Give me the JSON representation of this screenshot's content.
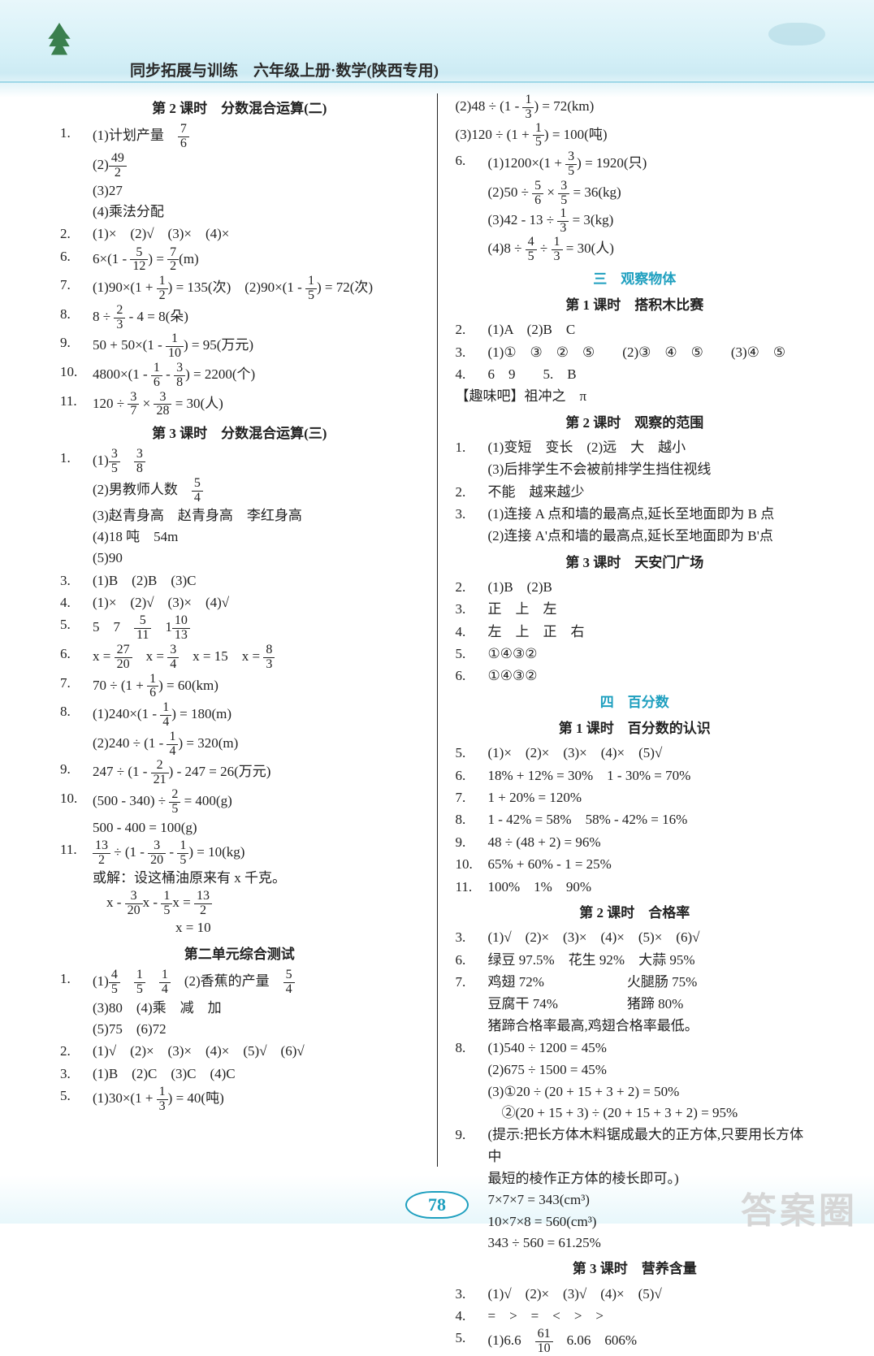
{
  "header": {
    "title": "同步拓展与训练　六年级上册·数学(陕西专用)"
  },
  "pageNumber": "78",
  "watermark": "答案圈",
  "colors": {
    "accent": "#1e9fbf",
    "header_bg_top": "#e8f7fb",
    "header_bg_bottom": "#cdebf4",
    "text": "#222222"
  },
  "left": {
    "sections": [
      {
        "title": "第 2 课时　分数混合运算(二)",
        "items": [
          {
            "n": "1.",
            "lines": [
              "(1)计划产量　<f>7|6</f>",
              "(2)<f>49|2</f>",
              "(3)27",
              "(4)乘法分配"
            ]
          },
          {
            "n": "2.",
            "lines": [
              "(1)×　(2)√　(3)×　(4)×"
            ]
          },
          {
            "n": "6.",
            "lines": [
              "6×(1 - <f>5|12</f>) = <f>7|2</f>(m)"
            ]
          },
          {
            "n": "7.",
            "lines": [
              "(1)90×(1 + <f>1|2</f>) = 135(次)　(2)90×(1 - <f>1|5</f>) = 72(次)"
            ]
          },
          {
            "n": "8.",
            "lines": [
              "8 ÷ <f>2|3</f> - 4 = 8(朵)"
            ]
          },
          {
            "n": "9.",
            "lines": [
              "50 + 50×(1 - <f>1|10</f>) = 95(万元)"
            ]
          },
          {
            "n": "10.",
            "lines": [
              "4800×(1 - <f>1|6</f> - <f>3|8</f>) = 2200(个)"
            ]
          },
          {
            "n": "11.",
            "lines": [
              "120 ÷ <f>3|7</f> × <f>3|28</f> = 30(人)"
            ]
          }
        ]
      },
      {
        "title": "第 3 课时　分数混合运算(三)",
        "items": [
          {
            "n": "1.",
            "lines": [
              "(1)<f>3|5</f>　<f>3|8</f>",
              "(2)男教师人数　<f>5|4</f>",
              "(3)赵青身高　赵青身高　李红身高",
              "(4)18 吨　54m",
              "(5)90"
            ]
          },
          {
            "n": "3.",
            "lines": [
              "(1)B　(2)B　(3)C"
            ]
          },
          {
            "n": "4.",
            "lines": [
              "(1)×　(2)√　(3)×　(4)√"
            ]
          },
          {
            "n": "5.",
            "lines": [
              "5　7　<f>5|11</f>　1<f>10|13</f>"
            ]
          },
          {
            "n": "6.",
            "lines": [
              "x = <f>27|20</f>　x = <f>3|4</f>　x = 15　x = <f>8|3</f>"
            ]
          },
          {
            "n": "7.",
            "lines": [
              "70 ÷ (1 + <f>1|6</f>) = 60(km)"
            ]
          },
          {
            "n": "8.",
            "lines": [
              "(1)240×(1 - <f>1|4</f>) = 180(m)",
              "(2)240 ÷ (1 - <f>1|4</f>) = 320(m)"
            ]
          },
          {
            "n": "9.",
            "lines": [
              "247 ÷ (1 - <f>2|21</f>) - 247 = 26(万元)"
            ]
          },
          {
            "n": "10.",
            "lines": [
              "(500 - 340) ÷ <f>2|5</f> = 400(g)",
              "500 - 400 = 100(g)"
            ]
          },
          {
            "n": "11.",
            "lines": [
              "<f>13|2</f> ÷ (1 - <f>3|20</f> - <f>1|5</f>) = 10(kg)",
              "或解：设这桶油原来有 x 千克。",
              "　x - <f>3|20</f>x - <f>1|5</f>x = <f>13|2</f>",
              "　　　　　　x = 10"
            ]
          }
        ]
      },
      {
        "title": "第二单元综合测试",
        "items": [
          {
            "n": "1.",
            "lines": [
              "(1)<f>4|5</f>　<f>1|5</f>　<f>1|4</f>　(2)香蕉的产量　<f>5|4</f>",
              "(3)80　(4)乘　减　加",
              "(5)75　(6)72"
            ]
          },
          {
            "n": "2.",
            "lines": [
              "(1)√　(2)×　(3)×　(4)×　(5)√　(6)√"
            ]
          },
          {
            "n": "3.",
            "lines": [
              "(1)B　(2)C　(3)C　(4)C"
            ]
          },
          {
            "n": "5.",
            "lines": [
              "(1)30×(1 + <f>1|3</f>) = 40(吨)"
            ]
          }
        ]
      }
    ]
  },
  "right": {
    "preItems": [
      {
        "n": "",
        "lines": [
          "(2)48 ÷ (1 - <f>1|3</f>) = 72(km)",
          "(3)120 ÷ (1 + <f>1|5</f>) = 100(吨)"
        ]
      },
      {
        "n": "6.",
        "lines": [
          "(1)1200×(1 + <f>3|5</f>) = 1920(只)",
          "(2)50 ÷ <f>5|6</f> × <f>3|5</f> = 36(kg)",
          "(3)42 - 13 ÷ <f>1|3</f> = 3(kg)",
          "(4)8 ÷ <f>4|5</f> ÷ <f>1|3</f> = 30(人)"
        ]
      }
    ],
    "units": [
      {
        "unit": "三　观察物体",
        "sections": [
          {
            "title": "第 1 课时　搭积木比赛",
            "items": [
              {
                "n": "2.",
                "lines": [
                  "(1)A　(2)B　C"
                ]
              },
              {
                "n": "3.",
                "lines": [
                  "(1)①　③　②　⑤　　(2)③　④　⑤　　(3)④　⑤"
                ]
              },
              {
                "n": "4.",
                "lines": [
                  "6　9　　5.　B"
                ]
              },
              {
                "n": "",
                "lines": [
                  "【趣味吧】祖冲之　π"
                ]
              }
            ]
          },
          {
            "title": "第 2 课时　观察的范围",
            "items": [
              {
                "n": "1.",
                "lines": [
                  "(1)变短　变长　(2)远　大　越小",
                  "(3)后排学生不会被前排学生挡住视线"
                ]
              },
              {
                "n": "2.",
                "lines": [
                  "不能　越来越少"
                ]
              },
              {
                "n": "3.",
                "lines": [
                  "(1)连接 A 点和墙的最高点,延长至地面即为 B 点",
                  "(2)连接 A'点和墙的最高点,延长至地面即为 B'点"
                ]
              }
            ]
          },
          {
            "title": "第 3 课时　天安门广场",
            "items": [
              {
                "n": "2.",
                "lines": [
                  "(1)B　(2)B"
                ]
              },
              {
                "n": "3.",
                "lines": [
                  "正　上　左"
                ]
              },
              {
                "n": "4.",
                "lines": [
                  "左　上　正　右"
                ]
              },
              {
                "n": "5.",
                "lines": [
                  "①④③②"
                ]
              },
              {
                "n": "6.",
                "lines": [
                  "①④③②"
                ]
              }
            ]
          }
        ]
      },
      {
        "unit": "四　百分数",
        "sections": [
          {
            "title": "第 1 课时　百分数的认识",
            "items": [
              {
                "n": "5.",
                "lines": [
                  "(1)×　(2)×　(3)×　(4)×　(5)√"
                ]
              },
              {
                "n": "6.",
                "lines": [
                  "18% + 12% = 30%　1 - 30% = 70%"
                ]
              },
              {
                "n": "7.",
                "lines": [
                  "1 + 20% = 120%"
                ]
              },
              {
                "n": "8.",
                "lines": [
                  "1 - 42% = 58%　58% - 42% = 16%"
                ]
              },
              {
                "n": "9.",
                "lines": [
                  "48 ÷ (48 + 2) = 96%"
                ]
              },
              {
                "n": "10.",
                "lines": [
                  "65% + 60% - 1 = 25%"
                ]
              },
              {
                "n": "11.",
                "lines": [
                  "100%　1%　90%"
                ]
              }
            ]
          },
          {
            "title": "第 2 课时　合格率",
            "items": [
              {
                "n": "3.",
                "lines": [
                  "(1)√　(2)×　(3)×　(4)×　(5)×　(6)√"
                ]
              },
              {
                "n": "6.",
                "lines": [
                  "绿豆 97.5%　花生 92%　大蒜 95%"
                ]
              },
              {
                "n": "7.",
                "lines": [
                  "鸡翅 72%　　　　　　火腿肠 75%",
                  "豆腐干 74%　　　　　猪蹄 80%",
                  "猪蹄合格率最高,鸡翅合格率最低。"
                ]
              },
              {
                "n": "8.",
                "lines": [
                  "(1)540 ÷ 1200 = 45%",
                  "(2)675 ÷ 1500 = 45%",
                  "(3)①20 ÷ (20 + 15 + 3 + 2) = 50%",
                  "　②(20 + 15 + 3) ÷ (20 + 15 + 3 + 2) = 95%"
                ]
              },
              {
                "n": "9.",
                "lines": [
                  "(提示:把长方体木料锯成最大的正方体,只要用长方体中",
                  "最短的棱作正方体的棱长即可。)",
                  "7×7×7 = 343(cm³)",
                  "10×7×8 = 560(cm³)",
                  "343 ÷ 560 = 61.25%"
                ]
              }
            ]
          },
          {
            "title": "第 3 课时　营养含量",
            "items": [
              {
                "n": "3.",
                "lines": [
                  "(1)√　(2)×　(3)√　(4)×　(5)√"
                ]
              },
              {
                "n": "4.",
                "lines": [
                  "=　>　=　<　>　>"
                ]
              },
              {
                "n": "5.",
                "lines": [
                  "(1)6.6　<f>61|10</f>　6.06　606%"
                ]
              }
            ]
          }
        ]
      }
    ]
  }
}
